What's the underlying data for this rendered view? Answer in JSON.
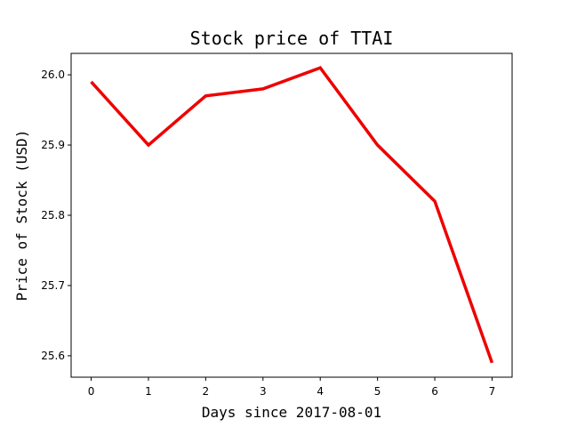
{
  "chart_data": {
    "type": "line",
    "title": "Stock price of TTAI",
    "xlabel": "Days since 2017-08-01",
    "ylabel": "Price of Stock (USD)",
    "x": [
      0,
      1,
      2,
      3,
      4,
      5,
      6,
      7
    ],
    "series": [
      {
        "values": [
          25.99,
          25.9,
          25.97,
          25.98,
          26.01,
          25.9,
          25.82,
          25.59
        ],
        "color": "#ee0000"
      }
    ],
    "xlim": [
      -0.35,
      7.35
    ],
    "ylim": [
      25.5695,
      26.0305
    ],
    "xticks": [
      0,
      1,
      2,
      3,
      4,
      5,
      6,
      7
    ],
    "xtick_labels": [
      "0",
      "1",
      "2",
      "3",
      "4",
      "5",
      "6",
      "7"
    ],
    "yticks": [
      25.6,
      25.7,
      25.8,
      25.9,
      26.0
    ],
    "ytick_labels": [
      "25.6",
      "25.7",
      "25.8",
      "25.9",
      "26.0"
    ],
    "grid": false,
    "legend": "none"
  }
}
